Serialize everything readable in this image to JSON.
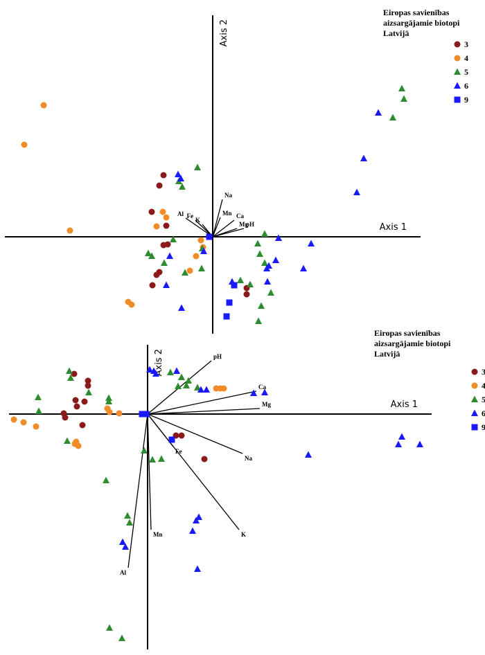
{
  "chart_data": [
    {
      "type": "biplot",
      "legend_title": [
        "Eiropas savienības",
        "aizsargājamie biotopi",
        "Latvijā"
      ],
      "x_label": "Axis 1",
      "y_label": "Axis 2",
      "xlim": [
        -3,
        3
      ],
      "ylim": [
        -1.4,
        3.2
      ],
      "series": [
        {
          "name": "3",
          "color": "#8b1a1a",
          "marker": "circle",
          "x": [
            -0.71,
            -0.77,
            -0.88,
            -0.67,
            -0.71,
            -0.65,
            -0.77,
            -0.81,
            -0.87,
            0.49,
            0.49
          ],
          "values": [
            0.89,
            0.74,
            0.36,
            0.16,
            -0.12,
            -0.11,
            -0.51,
            -0.55,
            -0.7,
            -0.74,
            -0.83
          ]
        },
        {
          "name": "4",
          "color": "#f28c28",
          "marker": "circle",
          "x": [
            -2.44,
            -2.72,
            -2.06,
            -0.72,
            -0.67,
            -0.81,
            -0.17,
            -0.14,
            -0.24,
            -0.33,
            -1.22,
            -1.17
          ],
          "values": [
            1.9,
            1.33,
            0.09,
            0.36,
            0.28,
            0.15,
            -0.05,
            -0.15,
            -0.28,
            -0.49,
            -0.94,
            -0.98
          ]
        },
        {
          "name": "5",
          "color": "#2e8b2e",
          "marker": "triangle",
          "x": [
            2.73,
            2.76,
            2.6,
            -0.22,
            -0.49,
            -0.44,
            -0.57,
            -0.93,
            -0.88,
            -0.7,
            -0.15,
            -0.16,
            -0.4,
            0.65,
            0.75,
            0.68,
            0.75,
            0.84,
            0.7,
            0.66,
            0.4,
            0.54
          ],
          "values": [
            2.14,
            1.99,
            1.72,
            1.0,
            0.8,
            0.72,
            -0.04,
            -0.24,
            -0.28,
            -0.38,
            -0.17,
            -0.46,
            -0.52,
            -0.1,
            0.04,
            -0.25,
            -0.38,
            -0.81,
            -1.0,
            -1.22,
            -0.63,
            -0.69
          ]
        },
        {
          "name": "6",
          "color": "#1a1aff",
          "marker": "triangle",
          "x": [
            2.39,
            2.18,
            2.08,
            -0.5,
            -0.46,
            0.95,
            1.42,
            0.91,
            0.81,
            0.78,
            0.79,
            1.31,
            -0.62,
            -0.67,
            -0.45,
            0.28,
            -0.13
          ],
          "values": [
            1.79,
            1.13,
            0.64,
            0.9,
            0.84,
            -0.02,
            -0.1,
            -0.34,
            -0.42,
            -0.46,
            -0.65,
            -0.46,
            -0.28,
            -0.7,
            -1.03,
            -0.65,
            -0.21
          ]
        },
        {
          "name": "9",
          "color": "#1a1aff",
          "marker": "square",
          "x": [
            0.2,
            0.24,
            0.31,
            -0.05
          ],
          "values": [
            -1.15,
            -0.95,
            -0.7,
            0.0
          ]
        }
      ],
      "vectors": {
        "labels": [
          "Na",
          "Al",
          "Fe",
          "K",
          "Mn",
          "Ca",
          "Mg",
          "pH"
        ],
        "x": [
          0.14,
          -0.39,
          -0.25,
          -0.15,
          0.11,
          0.31,
          0.35,
          0.45
        ],
        "y": [
          0.54,
          0.27,
          0.24,
          0.18,
          0.28,
          0.24,
          0.12,
          0.12
        ]
      }
    },
    {
      "type": "biplot",
      "legend_title": [
        "Eiropas savienības",
        "aizsargājamie biotopi",
        "Latvijā"
      ],
      "x_label": "Axis 1",
      "y_label": "Axis 2",
      "xlim": [
        -2,
        4.1
      ],
      "ylim": [
        -3.4,
        1
      ],
      "series": [
        {
          "name": "3",
          "color": "#8b1a1a",
          "marker": "circle",
          "x": [
            -1.06,
            -0.86,
            -0.86,
            -1.04,
            -0.91,
            -1.02,
            -1.21,
            -1.19,
            -0.94,
            0.41,
            0.49,
            0.82
          ],
          "values": [
            0.58,
            0.48,
            0.41,
            0.2,
            0.18,
            0.11,
            0.01,
            -0.05,
            -0.16,
            -0.31,
            -0.31,
            -0.65
          ]
        },
        {
          "name": "4",
          "color": "#f28c28",
          "marker": "circle",
          "x": [
            -1.93,
            -1.79,
            -1.61,
            -0.58,
            -0.55,
            -0.41,
            -1.05,
            -1.0,
            -1.03,
            0.99,
            1.05,
            1.1
          ],
          "values": [
            -0.08,
            -0.12,
            -0.18,
            0.08,
            0.03,
            0.01,
            -0.43,
            -0.46,
            -0.4,
            0.37,
            0.37,
            0.37
          ]
        },
        {
          "name": "5",
          "color": "#2e8b2e",
          "marker": "triangle",
          "x": [
            -1.11,
            -1.13,
            -1.58,
            -1.57,
            -0.85,
            -0.56,
            -0.56,
            -1.16,
            0.33,
            0.49,
            0.59,
            0.56,
            0.72,
            0.44,
            0.07,
            0.2,
            -0.05,
            -0.6,
            -0.29,
            -0.26,
            -0.55,
            -0.37
          ],
          "values": [
            0.52,
            0.62,
            0.24,
            0.04,
            0.31,
            0.23,
            0.18,
            -0.39,
            0.6,
            0.53,
            0.48,
            0.41,
            0.38,
            0.4,
            -0.66,
            -0.65,
            -0.53,
            -0.96,
            -1.47,
            -1.57,
            -3.09,
            -3.24
          ]
        },
        {
          "name": "6",
          "color": "#1a1aff",
          "marker": "triangle",
          "x": [
            0.03,
            0.09,
            0.12,
            0.42,
            0.77,
            0.85,
            1.53,
            1.69,
            2.32,
            3.67,
            3.62,
            3.93,
            0.74,
            0.7,
            0.65,
            0.72,
            -0.36,
            -0.32
          ],
          "values": [
            0.64,
            0.62,
            0.58,
            0.62,
            0.35,
            0.35,
            0.3,
            0.31,
            -0.59,
            -0.33,
            -0.44,
            -0.44,
            -1.49,
            -1.54,
            -1.69,
            -2.24,
            -1.85,
            -1.92
          ]
        },
        {
          "name": "9",
          "color": "#1a1aff",
          "marker": "square",
          "x": [
            -0.08,
            -0.02,
            0.35
          ],
          "values": [
            0.0,
            0.0,
            -0.37
          ]
        }
      ],
      "vectors": {
        "labels": [
          "pH",
          "Ca",
          "Mg",
          "Na",
          "K",
          "Fe",
          "Mn",
          "Al"
        ],
        "x": [
          0.92,
          1.57,
          1.62,
          1.37,
          1.32,
          0.37,
          0.05,
          -0.28
        ],
        "y": [
          0.77,
          0.33,
          0.08,
          -0.57,
          -1.67,
          -0.47,
          -1.67,
          -2.22
        ]
      }
    }
  ]
}
